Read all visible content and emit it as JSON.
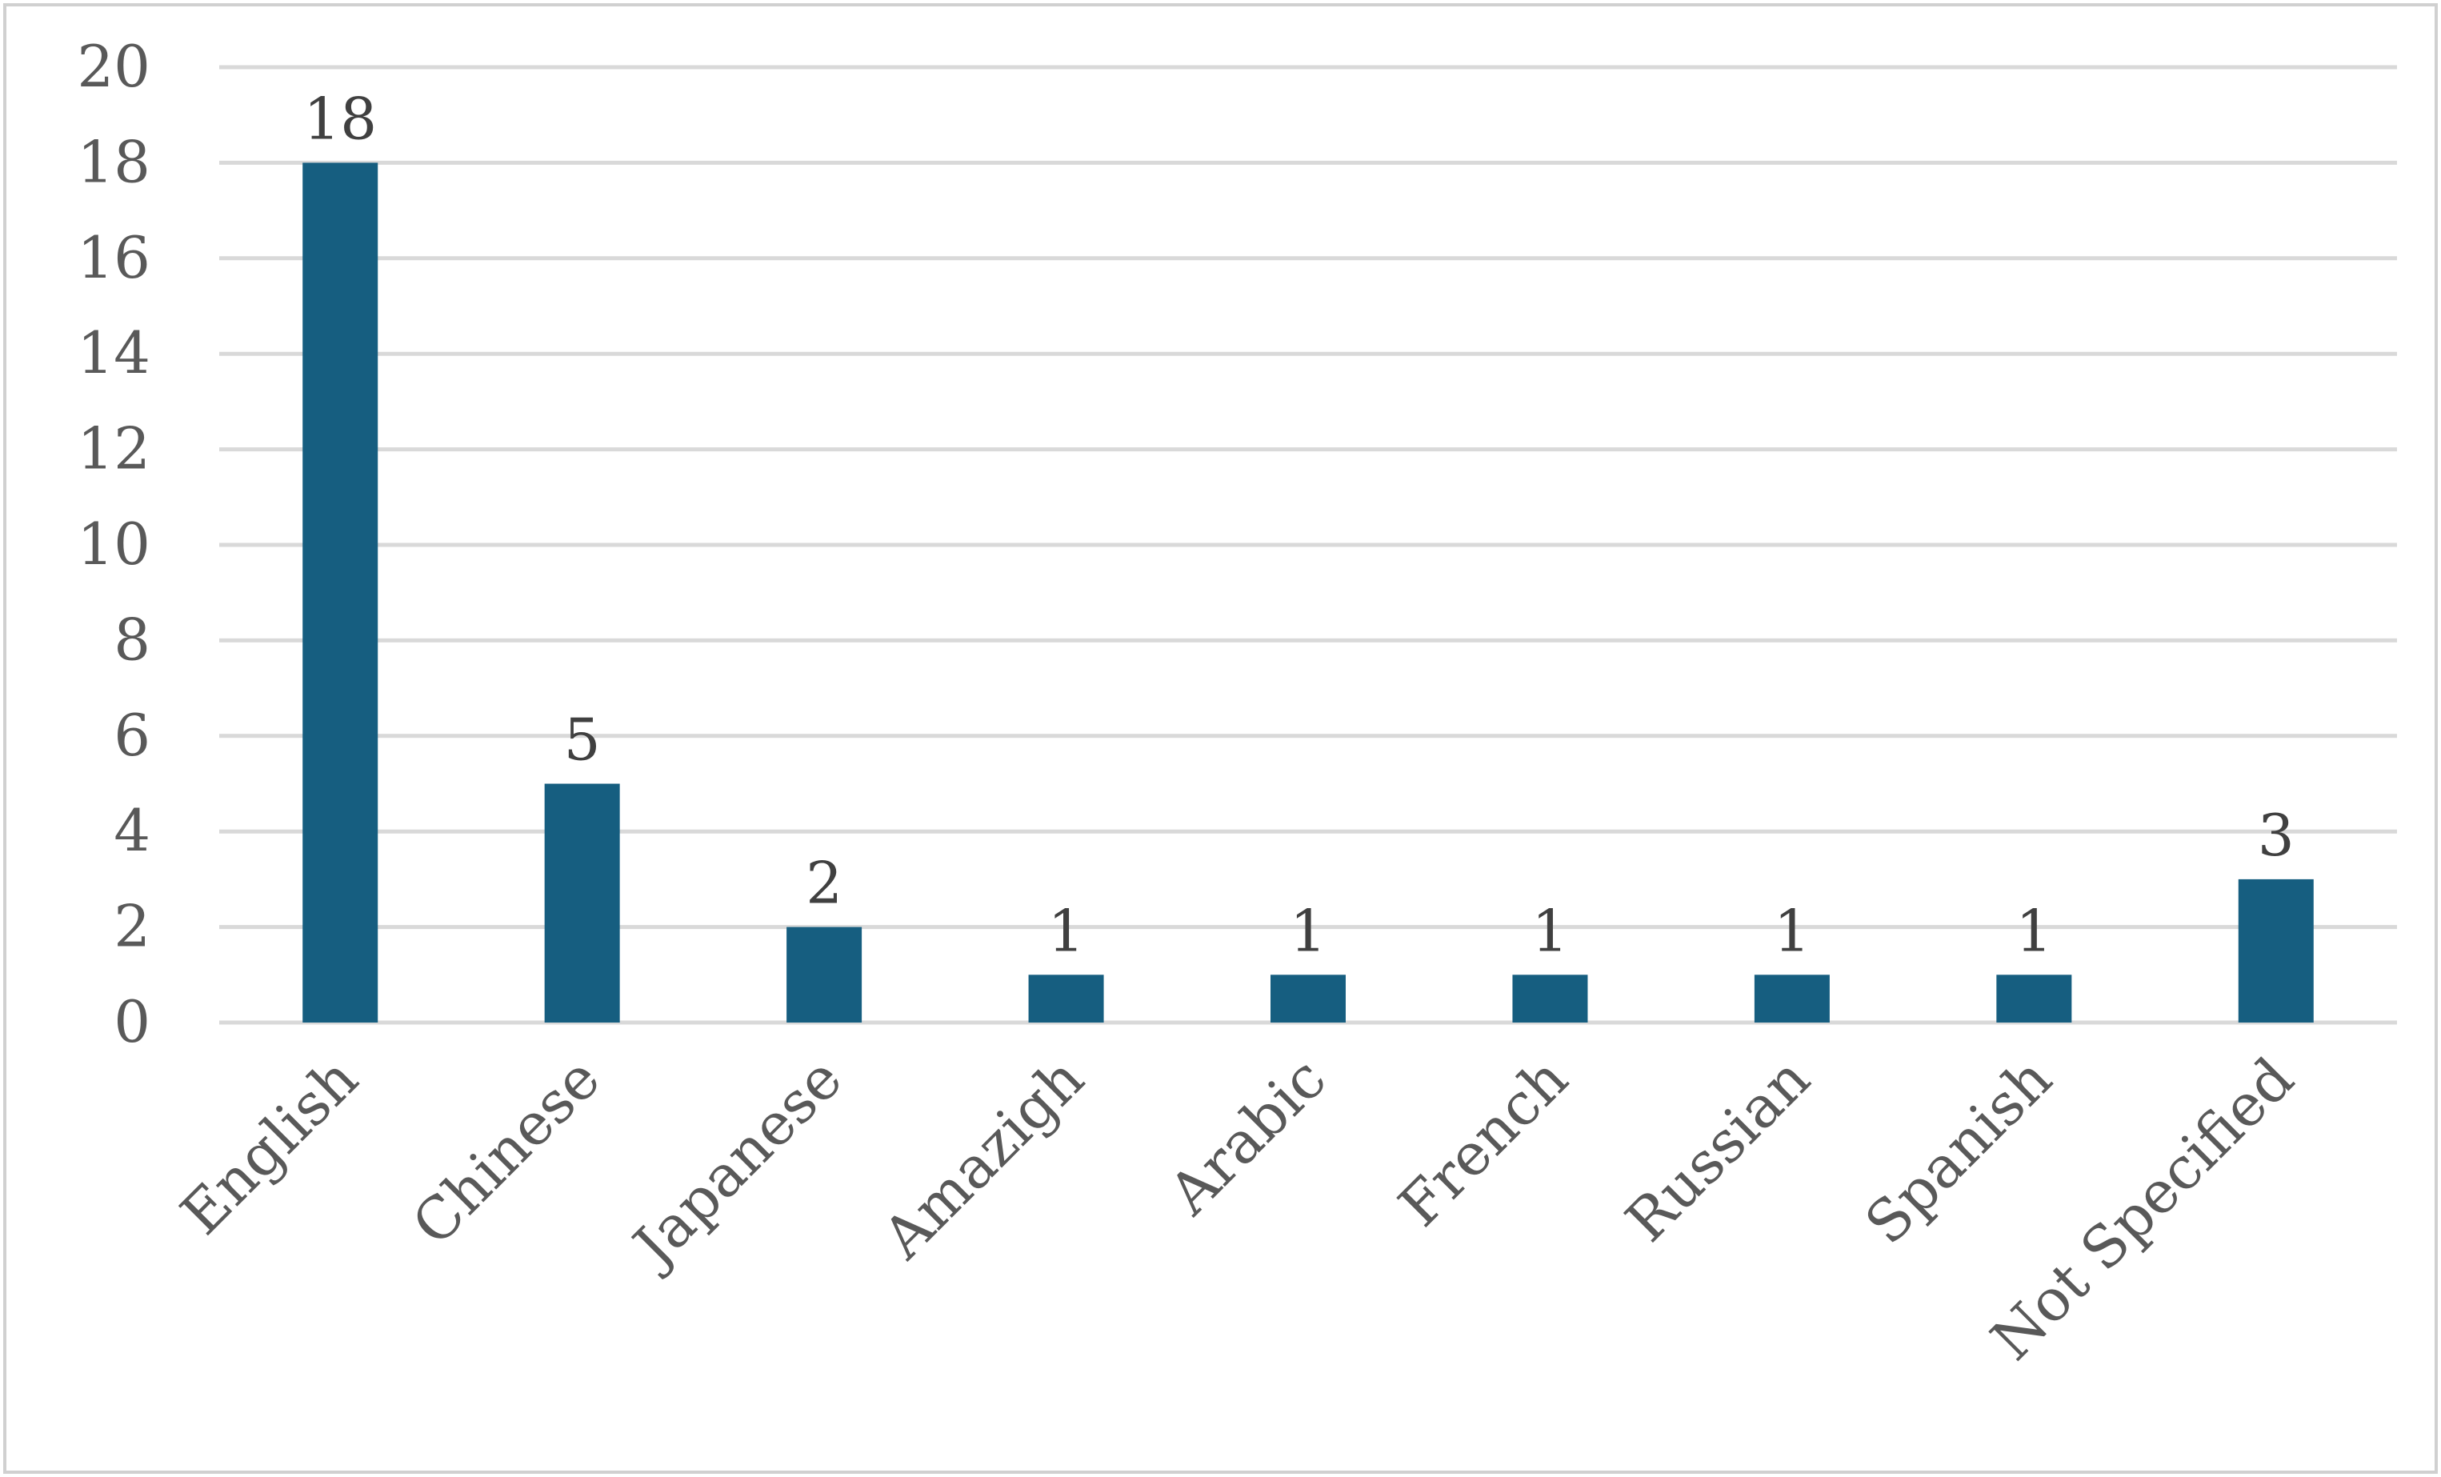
{
  "chart_data": {
    "type": "bar",
    "title": "",
    "xlabel": "",
    "ylabel": "",
    "categories": [
      "English",
      "Chinese",
      "Japanese",
      "Amazigh",
      "Arabic",
      "French",
      "Russian",
      "Spanish",
      "Not Specified"
    ],
    "values": [
      18,
      5,
      2,
      1,
      1,
      1,
      1,
      1,
      3
    ],
    "data_labels": [
      "18",
      "5",
      "2",
      "1",
      "1",
      "1",
      "1",
      "1",
      "3"
    ],
    "ylim": [
      0,
      20
    ],
    "yticks": [
      "0",
      "2",
      "4",
      "6",
      "8",
      "10",
      "12",
      "14",
      "16",
      "18",
      "20"
    ],
    "grid": true,
    "legend": "none",
    "colors": {
      "bar": "#165e80",
      "grid": "#d9d9d9",
      "axis_text": "#595959",
      "data_label": "#404040",
      "frame": "#d0d0d0"
    }
  }
}
